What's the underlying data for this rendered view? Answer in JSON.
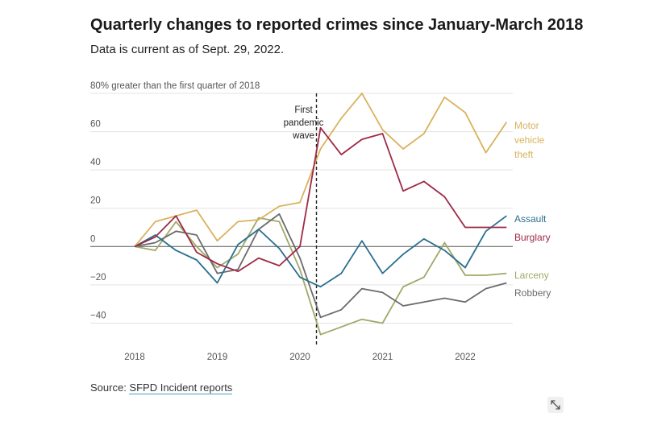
{
  "header": {
    "title": "Quarterly changes to reported crimes since January-March 2018",
    "subtitle": "Data is current as of Sept. 29, 2022."
  },
  "source": {
    "prefix": "Source: ",
    "link_text": "SFPD Incident reports"
  },
  "icons": {
    "expand": "expand-arrows-icon"
  },
  "chart_data": {
    "type": "line",
    "title": "Quarterly changes to reported crimes since January-March 2018",
    "ylabel_note": "80% greater than the first quarter of 2018",
    "ylim": [
      -52,
      80
    ],
    "yticks": [
      -40,
      -20,
      0,
      20,
      40,
      60
    ],
    "ytick_labels": [
      "−40",
      "−20",
      "0",
      "20",
      "40",
      "60"
    ],
    "xlim": [
      2018,
      2022.75
    ],
    "xticks": [
      2018,
      2019,
      2020,
      2021,
      2022
    ],
    "xtick_labels": [
      "2018",
      "2019",
      "2020",
      "2021",
      "2022"
    ],
    "annotation": {
      "x": 2020.2,
      "lines": [
        "First",
        "pandemic",
        "wave"
      ]
    },
    "x": [
      2018,
      2018.25,
      2018.5,
      2018.75,
      2019,
      2019.25,
      2019.5,
      2019.75,
      2020,
      2020.25,
      2020.5,
      2020.75,
      2021,
      2021.25,
      2021.5,
      2021.75,
      2022,
      2022.25,
      2022.5
    ],
    "series": [
      {
        "name": "Motor vehicle theft",
        "label_lines": [
          "Motor",
          "vehicle",
          "theft"
        ],
        "color": "#d9b25c",
        "values": [
          0,
          13,
          16,
          19,
          3,
          13,
          14,
          21,
          23,
          51,
          67,
          80,
          61,
          51,
          59,
          78,
          70,
          49,
          65
        ]
      },
      {
        "name": "Assault",
        "label_lines": [
          "Assault"
        ],
        "color": "#2a6f8e",
        "values": [
          0,
          6,
          -2,
          -7,
          -19,
          1,
          9,
          -1,
          -16,
          -21,
          -14,
          3,
          -14,
          -4,
          4,
          -2,
          -11,
          8,
          16
        ]
      },
      {
        "name": "Burglary",
        "label_lines": [
          "Burglary"
        ],
        "color": "#9e2a47",
        "values": [
          0,
          5,
          16,
          -3,
          -9,
          -13,
          -6,
          -10,
          0,
          62,
          48,
          56,
          59,
          29,
          34,
          26,
          10,
          10,
          10
        ]
      },
      {
        "name": "Larceny",
        "label_lines": [
          "Larceny"
        ],
        "color": "#a0a866",
        "values": [
          0,
          -2,
          13,
          0,
          -11,
          -4,
          15,
          13,
          -12,
          -46,
          -42,
          -38,
          -40,
          -21,
          -16,
          2,
          -15,
          -15,
          -14
        ]
      },
      {
        "name": "Robbery",
        "label_lines": [
          "Robbery"
        ],
        "color": "#6b6b6b",
        "values": [
          0,
          2,
          8,
          6,
          -14,
          -12,
          9,
          17,
          -6,
          -37,
          -33,
          -22,
          -24,
          -31,
          -29,
          -27,
          -29,
          -22,
          -19
        ]
      }
    ]
  }
}
